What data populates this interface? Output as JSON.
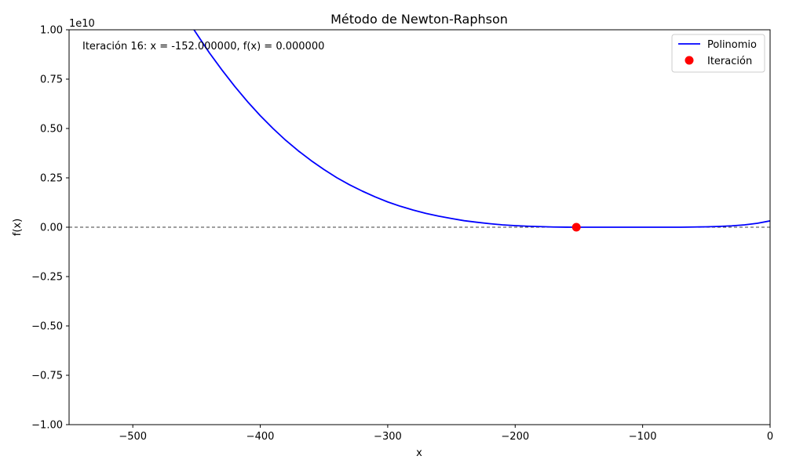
{
  "chart_data": {
    "type": "line",
    "title": "Método de Newton-Raphson",
    "xlabel": "x",
    "ylabel": "f(x)",
    "y_scale_label": "1e10",
    "y_scale": 10000000000,
    "xlim": [
      -550,
      0
    ],
    "ylim": [
      -1.0,
      1.0
    ],
    "x_ticks": [
      -500,
      -400,
      -300,
      -200,
      -100,
      0
    ],
    "x_tick_labels": [
      "−500",
      "−400",
      "−300",
      "−200",
      "−100",
      "0"
    ],
    "y_ticks": [
      -1.0,
      -0.75,
      -0.5,
      -0.25,
      0.0,
      0.25,
      0.5,
      0.75,
      1.0
    ],
    "y_tick_labels": [
      "−1.00",
      "−0.75",
      "−0.50",
      "−0.25",
      "0.00",
      "0.25",
      "0.50",
      "0.75",
      "1.00"
    ],
    "grid": false,
    "legend_position": "top-right",
    "zero_line": {
      "y": 0,
      "style": "dashed",
      "color": "#000000"
    },
    "series": [
      {
        "name": "Polinomio",
        "kind": "line",
        "color": "#0000ff",
        "x": [
          -452,
          -440,
          -430,
          -420,
          -410,
          -400,
          -390,
          -380,
          -370,
          -360,
          -350,
          -340,
          -330,
          -320,
          -310,
          -300,
          -290,
          -280,
          -270,
          -260,
          -250,
          -240,
          -230,
          -220,
          -210,
          -200,
          -190,
          -180,
          -170,
          -160,
          -152,
          -140,
          -130,
          -120,
          -110,
          -100,
          -90,
          -80,
          -70,
          -60,
          -50,
          -40,
          -30,
          -20,
          -10,
          0
        ],
        "y": [
          1.0,
          0.884,
          0.796,
          0.713,
          0.636,
          0.565,
          0.5,
          0.44,
          0.386,
          0.337,
          0.292,
          0.251,
          0.215,
          0.183,
          0.154,
          0.128,
          0.106,
          0.087,
          0.07,
          0.056,
          0.044,
          0.033,
          0.025,
          0.018,
          0.012,
          0.008,
          0.005,
          0.003,
          0.001,
          0.0003,
          0.0,
          0.0,
          0.0,
          0.0,
          0.0,
          0.0,
          0.0,
          0.0,
          0.0,
          0.001,
          0.002,
          0.004,
          0.007,
          0.012,
          0.02,
          0.032
        ]
      },
      {
        "name": "Iteración",
        "kind": "scatter",
        "color": "#ff0000",
        "x": [
          -152
        ],
        "y": [
          0.0
        ]
      }
    ],
    "annotation": "Iteración 16: x = -152.000000, f(x) = 0.000000"
  }
}
